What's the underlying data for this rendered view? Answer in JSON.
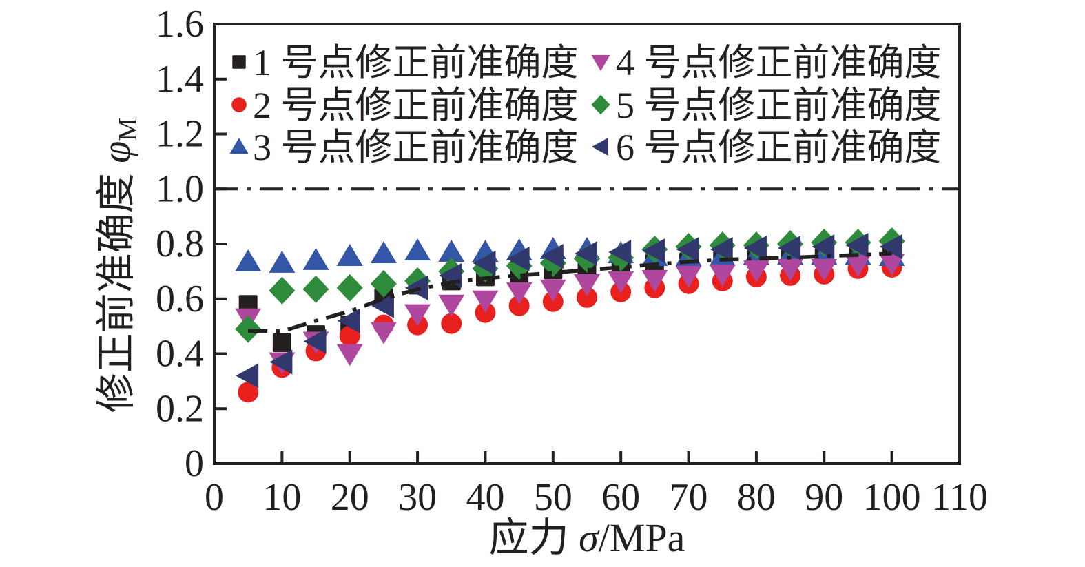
{
  "chart_data": {
    "type": "scatter",
    "title": "",
    "xlabel": {
      "cn": "应力",
      "symbol": "σ",
      "unit": "/MPa"
    },
    "ylabel": {
      "cn": "修正前准确度",
      "symbol": "φ",
      "subscript": "M"
    },
    "xlim": [
      0,
      110
    ],
    "ylim": [
      0,
      1.6
    ],
    "x_ticks": [
      0,
      10,
      20,
      30,
      40,
      50,
      60,
      70,
      80,
      90,
      100,
      110
    ],
    "y_ticks": [
      "0",
      "0.2",
      "0.4",
      "0.6",
      "0.8",
      "1.0",
      "1.2",
      "1.4",
      "1.6"
    ],
    "grid": false,
    "legend_position": "top-left-inside",
    "legend_columns": 2,
    "frame_color": "#231f20",
    "x": [
      5,
      10,
      15,
      20,
      25,
      30,
      35,
      40,
      45,
      50,
      55,
      60,
      65,
      70,
      75,
      80,
      85,
      90,
      95,
      100
    ],
    "series": [
      {
        "name": "1 号点修正前准确度",
        "marker": "square",
        "color": "#231f20",
        "values": [
          0.58,
          0.44,
          0.47,
          0.505,
          0.605,
          0.65,
          0.665,
          0.68,
          0.69,
          0.705,
          0.715,
          0.725,
          0.73,
          0.735,
          0.74,
          0.745,
          0.75,
          0.75,
          0.755,
          0.76
        ]
      },
      {
        "name": "2 号点修正前准确度",
        "marker": "circle",
        "color": "#e9211e",
        "values": [
          0.26,
          0.35,
          0.41,
          0.465,
          0.505,
          0.505,
          0.51,
          0.55,
          0.575,
          0.59,
          0.605,
          0.625,
          0.64,
          0.655,
          0.665,
          0.68,
          0.685,
          0.69,
          0.71,
          0.715
        ]
      },
      {
        "name": "3 号点修正前准确度",
        "marker": "triangle-up",
        "color": "#3456a7",
        "values": [
          0.735,
          0.73,
          0.74,
          0.755,
          0.765,
          0.775,
          0.77,
          0.77,
          0.775,
          0.78,
          0.78,
          0.765,
          0.755,
          0.755,
          0.755,
          0.76,
          0.76,
          0.76,
          0.76,
          0.755
        ]
      },
      {
        "name": "4 号点修正前准确度",
        "marker": "triangle-down",
        "color": "#b0479e",
        "values": [
          0.53,
          0.37,
          0.445,
          0.4,
          0.48,
          0.545,
          0.58,
          0.595,
          0.625,
          0.635,
          0.655,
          0.665,
          0.67,
          0.685,
          0.69,
          0.705,
          0.71,
          0.71,
          0.725,
          0.73
        ]
      },
      {
        "name": "5 号点修正前准确度",
        "marker": "diamond",
        "color": "#2f8b3c",
        "values": [
          0.49,
          0.63,
          0.635,
          0.64,
          0.655,
          0.665,
          0.7,
          0.71,
          0.72,
          0.73,
          0.745,
          0.75,
          0.78,
          0.79,
          0.795,
          0.795,
          0.8,
          0.805,
          0.805,
          0.81
        ]
      },
      {
        "name": "6 号点修正前准确度",
        "marker": "triangle-left",
        "color": "#31386e",
        "values": [
          0.32,
          0.37,
          0.445,
          0.52,
          0.575,
          0.64,
          0.685,
          0.73,
          0.745,
          0.755,
          0.765,
          0.77,
          0.775,
          0.78,
          0.78,
          0.785,
          0.785,
          0.79,
          0.795,
          0.79
        ]
      }
    ],
    "reference_line": {
      "y": 1.0,
      "style": "dash-dot",
      "color": "#231f20"
    },
    "trend_line": {
      "style": "dash-dot",
      "color": "#231f20",
      "points": [
        [
          5,
          0.483
        ],
        [
          10,
          0.482
        ],
        [
          15,
          0.52
        ],
        [
          20,
          0.555
        ],
        [
          25,
          0.6
        ],
        [
          30,
          0.635
        ],
        [
          35,
          0.66
        ],
        [
          40,
          0.675
        ],
        [
          45,
          0.685
        ],
        [
          50,
          0.695
        ],
        [
          55,
          0.705
        ],
        [
          60,
          0.715
        ],
        [
          65,
          0.725
        ],
        [
          70,
          0.735
        ],
        [
          75,
          0.742
        ],
        [
          80,
          0.747
        ],
        [
          85,
          0.75
        ],
        [
          90,
          0.755
        ],
        [
          95,
          0.76
        ],
        [
          100,
          0.765
        ]
      ]
    }
  }
}
